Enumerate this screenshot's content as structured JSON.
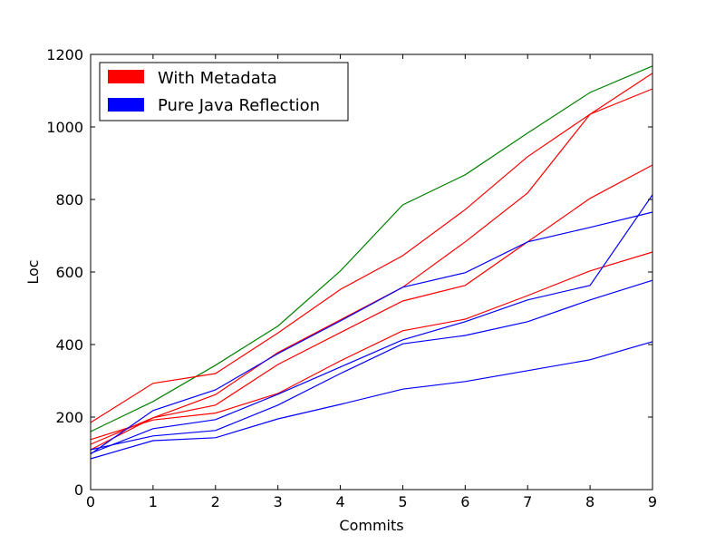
{
  "chart_data": {
    "type": "line",
    "title": "",
    "xlabel": "Commits",
    "ylabel": "Loc",
    "xlim": [
      0,
      9
    ],
    "ylim": [
      0,
      1200
    ],
    "x": [
      0,
      1,
      2,
      3,
      4,
      5,
      6,
      7,
      8,
      9
    ],
    "x_ticks": [
      "0",
      "1",
      "2",
      "3",
      "4",
      "5",
      "6",
      "7",
      "8",
      "9"
    ],
    "y_ticks": [
      "0",
      "200",
      "400",
      "600",
      "800",
      "1000",
      "1200"
    ],
    "y_tick_values": [
      0,
      200,
      400,
      600,
      800,
      1000,
      1200
    ],
    "grid": false,
    "legend_position": "top-left",
    "legend": [
      {
        "label": "With Metadata",
        "color": "#ff0000"
      },
      {
        "label": "Pure Java Reflection",
        "color": "#0000ff"
      }
    ],
    "series": [
      {
        "color": "#008000",
        "values": [
          160,
          243,
          343,
          451,
          603,
          785,
          868,
          983,
          1095,
          1168
        ]
      },
      {
        "color": "#ff0000",
        "values": [
          185,
          293,
          320,
          432,
          552,
          645,
          772,
          918,
          1035,
          1148
        ]
      },
      {
        "color": "#ff0000",
        "values": [
          125,
          198,
          262,
          378,
          468,
          558,
          683,
          818,
          1035,
          1105
        ]
      },
      {
        "color": "#ff0000",
        "values": [
          110,
          198,
          233,
          345,
          433,
          520,
          563,
          683,
          803,
          895
        ]
      },
      {
        "color": "#ff0000",
        "values": [
          138,
          192,
          211,
          265,
          355,
          438,
          470,
          535,
          603,
          655
        ]
      },
      {
        "color": "#0000ff",
        "values": [
          98,
          218,
          275,
          375,
          465,
          558,
          598,
          683,
          723,
          765
        ]
      },
      {
        "color": "#0000ff",
        "values": [
          100,
          168,
          193,
          263,
          338,
          413,
          463,
          523,
          563,
          813
        ]
      },
      {
        "color": "#0000ff",
        "values": [
          110,
          148,
          163,
          233,
          320,
          402,
          425,
          463,
          523,
          577
        ]
      },
      {
        "color": "#0000ff",
        "values": [
          85,
          135,
          143,
          195,
          235,
          277,
          298,
          328,
          358,
          408
        ]
      }
    ]
  }
}
